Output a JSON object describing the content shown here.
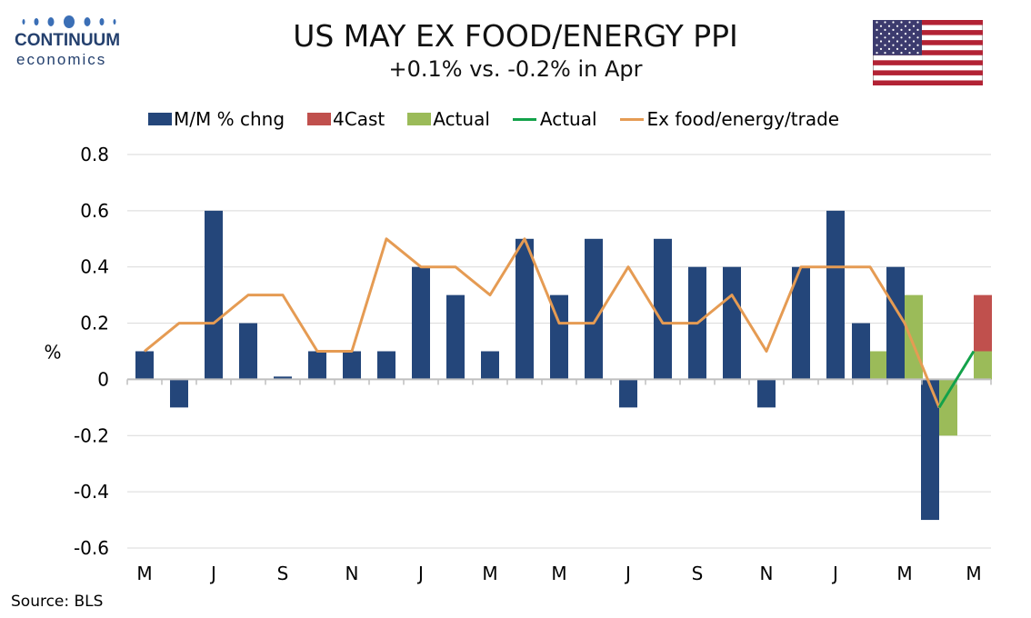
{
  "logo": {
    "word1": "CONTINUUM",
    "word2": "economics"
  },
  "source": "Source: BLS",
  "colors": {
    "mm_bar": "#24467a",
    "forecast_bar": "#c0504d",
    "actual_bar": "#9bbb59",
    "actual_line": "#13a24a",
    "ex_trade_line": "#e59b53",
    "grid": "#d9d9d9",
    "axis": "#bfbfbf"
  },
  "chart_data": {
    "type": "bar",
    "title": "US MAY EX FOOD/ENERGY PPI",
    "subtitle": "+0.1% vs. -0.2% in Apr",
    "ylabel": "%",
    "ylim": [
      -0.6,
      0.8
    ],
    "yticks": [
      "0.8",
      "0.6",
      "0.4",
      "0.2",
      "0",
      "-0.2",
      "-0.4",
      "-0.6"
    ],
    "x_tick_labels": [
      "M",
      "J",
      "S",
      "N",
      "J",
      "M",
      "M",
      "J",
      "S",
      "N",
      "J",
      "M",
      "M"
    ],
    "legend_position": "top",
    "series": [
      {
        "name": "M/M % chng",
        "kind": "bar",
        "values": [
          0.1,
          -0.1,
          0.6,
          0.2,
          0.01,
          0.1,
          0.1,
          0.1,
          0.4,
          0.3,
          0.1,
          0.5,
          0.3,
          0.5,
          -0.1,
          0.5,
          0.4,
          0.4,
          -0.1,
          0.4,
          0.6,
          0.2,
          0.4,
          -0.5,
          null
        ]
      },
      {
        "name": "4Cast",
        "kind": "bar",
        "values": [
          null,
          null,
          null,
          null,
          null,
          null,
          null,
          null,
          null,
          null,
          null,
          null,
          null,
          null,
          null,
          null,
          null,
          null,
          null,
          null,
          null,
          null,
          null,
          null,
          0.3
        ]
      },
      {
        "name": "Actual",
        "kind": "bar",
        "values": [
          null,
          null,
          null,
          null,
          null,
          null,
          null,
          null,
          null,
          null,
          null,
          null,
          null,
          null,
          null,
          null,
          null,
          null,
          null,
          null,
          null,
          0.1,
          0.3,
          -0.2,
          0.1
        ]
      },
      {
        "name": "Actual",
        "kind": "line",
        "values": [
          null,
          null,
          null,
          null,
          null,
          null,
          null,
          null,
          null,
          null,
          null,
          null,
          null,
          null,
          null,
          null,
          null,
          null,
          null,
          null,
          null,
          null,
          null,
          -0.1,
          0.1
        ]
      },
      {
        "name": "Ex food/energy/trade",
        "kind": "line",
        "values": [
          0.1,
          0.2,
          0.2,
          0.3,
          0.3,
          0.1,
          0.1,
          0.5,
          0.4,
          0.4,
          0.3,
          0.5,
          0.2,
          0.2,
          0.4,
          0.2,
          0.2,
          0.3,
          0.1,
          0.4,
          0.4,
          0.4,
          0.2,
          -0.1,
          null
        ]
      }
    ]
  }
}
